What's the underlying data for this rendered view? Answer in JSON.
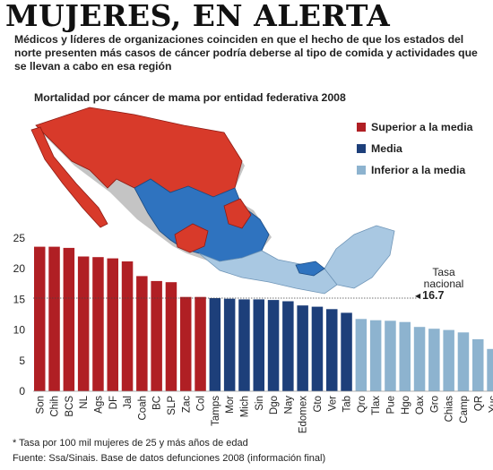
{
  "header": {
    "title": "MUJERES, EN ALERTA",
    "deck": "Médicos y líderes de organizaciones coinciden en que el hecho de que los estados del norte presenten más casos de cáncer podría deberse al tipo de comida y actividades  que se llevan a cabo en esa región"
  },
  "map": {
    "title": "Mortalidad por cáncer de mama por entidad federativa 2008"
  },
  "legend": [
    {
      "label": "Superior a la media",
      "color": "#b01f24"
    },
    {
      "label": "Media",
      "color": "#1d3f7a"
    },
    {
      "label": "Inferior a la media",
      "color": "#8db3cf"
    }
  ],
  "national_rate": {
    "label": "Tasa nacional",
    "value": "16.7"
  },
  "footer": {
    "note": "*  Tasa por 100 mil mujeres de 25 y más años de edad",
    "source": "Fuente: Ssa/Sinais. Base de datos defunciones 2008 (información final)"
  },
  "colors": {
    "above": "#b01f24",
    "average": "#1d3f7a",
    "below": "#8db3cf",
    "map_red": "#d83a2a",
    "map_blue": "#2f73bf",
    "map_light": "#a9c8e2"
  },
  "chart_data": {
    "type": "bar",
    "ylim": [
      0,
      25
    ],
    "yticks": [
      0,
      5,
      10,
      15,
      20,
      25
    ],
    "reference_line": 15.2,
    "categories": [
      "Son",
      "Chih",
      "BCS",
      "NL",
      "Ags",
      "DF",
      "Jal",
      "Coah",
      "BC",
      "SLP",
      "Zac",
      "Col",
      "Tamps",
      "Mor",
      "Mich",
      "Sin",
      "Dgo",
      "Nay",
      "Edomex",
      "Gto",
      "Ver",
      "Tab",
      "Qro",
      "Tlax",
      "Pue",
      "Hgo",
      "Oax",
      "Gro",
      "Chias",
      "Camp",
      "QR",
      "Yuc"
    ],
    "values": [
      23.6,
      23.6,
      23.4,
      22.0,
      21.9,
      21.7,
      21.2,
      18.8,
      18.0,
      17.8,
      15.4,
      15.4,
      15.2,
      15.1,
      15.0,
      15.0,
      14.9,
      14.7,
      14.0,
      13.8,
      13.4,
      12.8,
      11.8,
      11.6,
      11.5,
      11.3,
      10.5,
      10.2,
      10.0,
      9.6,
      8.5,
      6.9
    ],
    "groups": [
      "above",
      "above",
      "above",
      "above",
      "above",
      "above",
      "above",
      "above",
      "above",
      "above",
      "above",
      "above",
      "average",
      "average",
      "average",
      "average",
      "average",
      "average",
      "average",
      "average",
      "average",
      "average",
      "below",
      "below",
      "below",
      "below",
      "below",
      "below",
      "below",
      "below",
      "below",
      "below"
    ]
  }
}
